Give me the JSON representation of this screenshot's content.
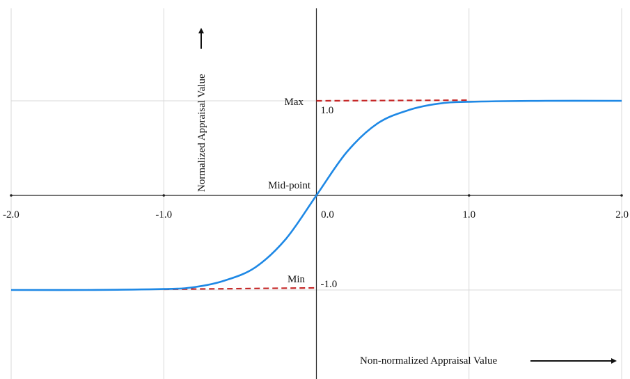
{
  "chart_data": {
    "type": "line",
    "xlim": [
      -2.0,
      2.0
    ],
    "ylim": [
      -1.0,
      1.0
    ],
    "x_ticks": [
      "-2.0",
      "-1.0",
      "0.0",
      "1.0",
      "2.0"
    ],
    "y_ticks": [
      "1.0",
      "-1.0"
    ],
    "grid": true,
    "series": [
      {
        "x": [
          -2.0,
          -1.5,
          -1.0,
          -0.8,
          -0.6,
          -0.4,
          -0.2,
          0.0,
          0.2,
          0.4,
          0.6,
          0.8,
          1.0,
          1.5,
          2.0
        ],
        "y": [
          -1.0,
          -1.0,
          -0.99,
          -0.97,
          -0.9,
          -0.76,
          -0.46,
          0.0,
          0.46,
          0.76,
          0.9,
          0.97,
          0.99,
          1.0,
          1.0
        ]
      }
    ],
    "annotations": {
      "max_label": "Max",
      "min_label": "Min",
      "mid_label": "Mid-point",
      "xlabel": "Non-normalized Appraisal Value",
      "ylabel": "Normalized Appraisal Value"
    },
    "colors": {
      "curve": "#1e88e5",
      "reference": "#c62828",
      "axis": "#222222",
      "grid": "#d9d9d9"
    }
  }
}
